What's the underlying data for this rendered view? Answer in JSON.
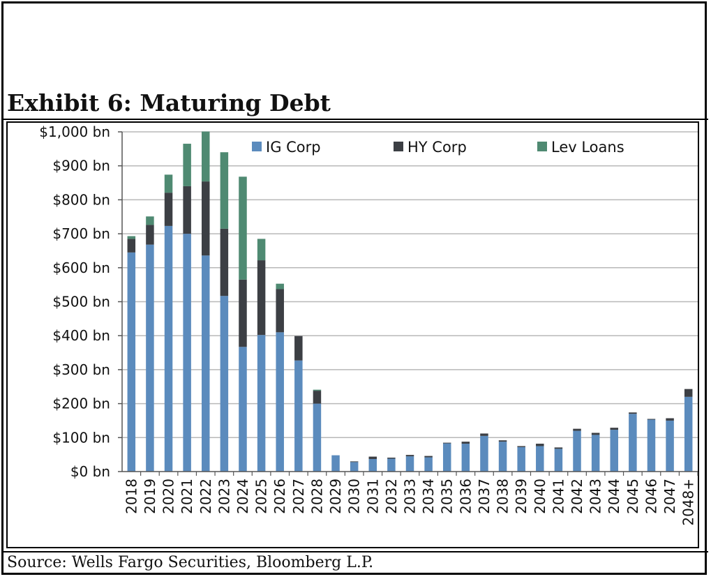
{
  "title": "Exhibit 6: Maturing Debt",
  "source": "Source: Wells Fargo Securities, Bloomberg L.P.",
  "chart_data": {
    "type": "bar",
    "stacked": true,
    "title": "Exhibit 6: Maturing Debt",
    "xlabel": "",
    "ylabel": "",
    "ylim": [
      0,
      1000
    ],
    "yticks": [
      0,
      100,
      200,
      300,
      400,
      500,
      600,
      700,
      800,
      900,
      1000
    ],
    "ytick_labels": [
      "$0 bn",
      "$100 bn",
      "$200 bn",
      "$300 bn",
      "$400 bn",
      "$500 bn",
      "$600 bn",
      "$700 bn",
      "$800 bn",
      "$900 bn",
      "$1,000 bn"
    ],
    "grid": true,
    "legend_position": "top",
    "categories": [
      "2018",
      "2019",
      "2020",
      "2021",
      "2022",
      "2023",
      "2024",
      "2025",
      "2026",
      "2027",
      "2028",
      "2029",
      "2030",
      "2031",
      "2032",
      "2033",
      "2034",
      "2035",
      "2036",
      "2037",
      "2038",
      "2039",
      "2040",
      "2041",
      "2042",
      "2043",
      "2044",
      "2045",
      "2046",
      "2047",
      "2048+"
    ],
    "series": [
      {
        "name": "IG Corp",
        "color": "#5b8bbd",
        "values": [
          645,
          668,
          723,
          700,
          636,
          517,
          367,
          402,
          410,
          327,
          200,
          48,
          28,
          37,
          38,
          45,
          42,
          83,
          82,
          105,
          88,
          72,
          75,
          67,
          120,
          108,
          123,
          170,
          153,
          150,
          220
        ]
      },
      {
        "name": "HY Corp",
        "color": "#3c3f44",
        "values": [
          40,
          58,
          98,
          140,
          218,
          198,
          198,
          220,
          127,
          72,
          38,
          0,
          2,
          7,
          3,
          4,
          4,
          2,
          6,
          7,
          4,
          3,
          7,
          4,
          6,
          6,
          6,
          4,
          2,
          7,
          23
        ]
      },
      {
        "name": "Lev Loans",
        "color": "#4f8a72",
        "values": [
          8,
          25,
          53,
          125,
          147,
          225,
          303,
          63,
          16,
          0,
          3,
          0,
          0,
          0,
          0,
          0,
          0,
          0,
          0,
          0,
          0,
          0,
          0,
          0,
          0,
          0,
          0,
          0,
          0,
          0,
          0
        ]
      }
    ]
  }
}
